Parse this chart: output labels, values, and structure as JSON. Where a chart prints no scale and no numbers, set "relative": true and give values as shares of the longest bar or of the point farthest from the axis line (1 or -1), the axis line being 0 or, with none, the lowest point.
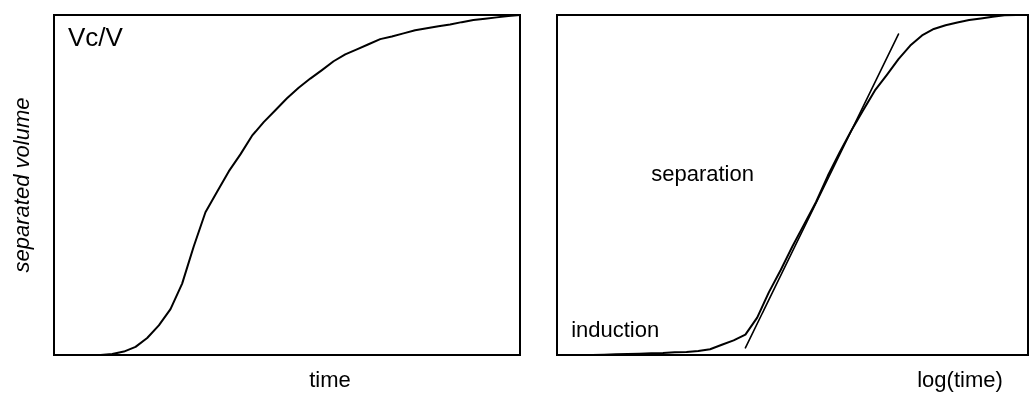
{
  "chart_data": [
    {
      "type": "line",
      "relative": true,
      "legend": false,
      "marker": "none",
      "ylabel": "separated volume",
      "xlabel": "time",
      "annotations": [
        "Vc/V"
      ],
      "categories": [
        null,
        null,
        null,
        null,
        null,
        null,
        null,
        null,
        null,
        null,
        null,
        null,
        null,
        null,
        null,
        null,
        null,
        null,
        null,
        null,
        null,
        null,
        null,
        null,
        null,
        null,
        null,
        null,
        null,
        null,
        null,
        null,
        null,
        null,
        null,
        null,
        null,
        null,
        null,
        null,
        null
      ],
      "series": [
        {
          "color": "#000000",
          "values": [
            null,
            null,
            null,
            null,
            0,
            0.003,
            0.01,
            0.024,
            0.05,
            0.087,
            0.135,
            0.21,
            0.32,
            0.42,
            0.48,
            0.54,
            0.59,
            0.645,
            0.685,
            0.72,
            0.755,
            0.786,
            0.813,
            0.838,
            0.864,
            0.884,
            0.899,
            0.914,
            0.929,
            0.937,
            0.946,
            0.955,
            0.961,
            0.967,
            0.972,
            0.979,
            0.985,
            0.989,
            0.993,
            0.997,
            1
          ]
        }
      ]
    },
    {
      "type": "line",
      "relative": true,
      "legend": false,
      "marker": "none",
      "xlabel": "log(time)",
      "annotations": [
        "separation",
        "induction"
      ],
      "categories": [
        null,
        null,
        null,
        null,
        null,
        null,
        null,
        null,
        null,
        null,
        null,
        null,
        null,
        null,
        null,
        null,
        null,
        null,
        null,
        null,
        null,
        null,
        null,
        null,
        null,
        null,
        null,
        null,
        null,
        null,
        null,
        null,
        null,
        null,
        null,
        null,
        null,
        null,
        null,
        null,
        null
      ],
      "series": [
        {
          "color": "#000000",
          "values": [
            null,
            null,
            0,
            0,
            0.001,
            0.002,
            0.003,
            0.004,
            0.005,
            0.006,
            0.008,
            0.009,
            0.012,
            0.017,
            0.03,
            0.043,
            0.06,
            0.11,
            0.185,
            0.25,
            0.32,
            0.385,
            0.45,
            0.527,
            0.596,
            0.66,
            0.72,
            0.778,
            0.823,
            0.87,
            0.91,
            0.94,
            0.959,
            0.97,
            0.978,
            0.985,
            0.99,
            0.995,
            0.999,
            1,
            1
          ]
        },
        {
          "color": "#000000",
          "values": [
            null,
            null,
            null,
            null,
            null,
            null,
            null,
            null,
            null,
            null,
            null,
            null,
            null,
            null,
            null,
            null,
            0.021,
            null,
            null,
            null,
            null,
            null,
            null,
            null,
            null,
            null,
            null,
            null,
            null,
            0.944,
            null,
            null,
            null,
            null,
            null,
            null,
            null,
            null,
            null,
            null,
            null
          ]
        }
      ]
    }
  ]
}
